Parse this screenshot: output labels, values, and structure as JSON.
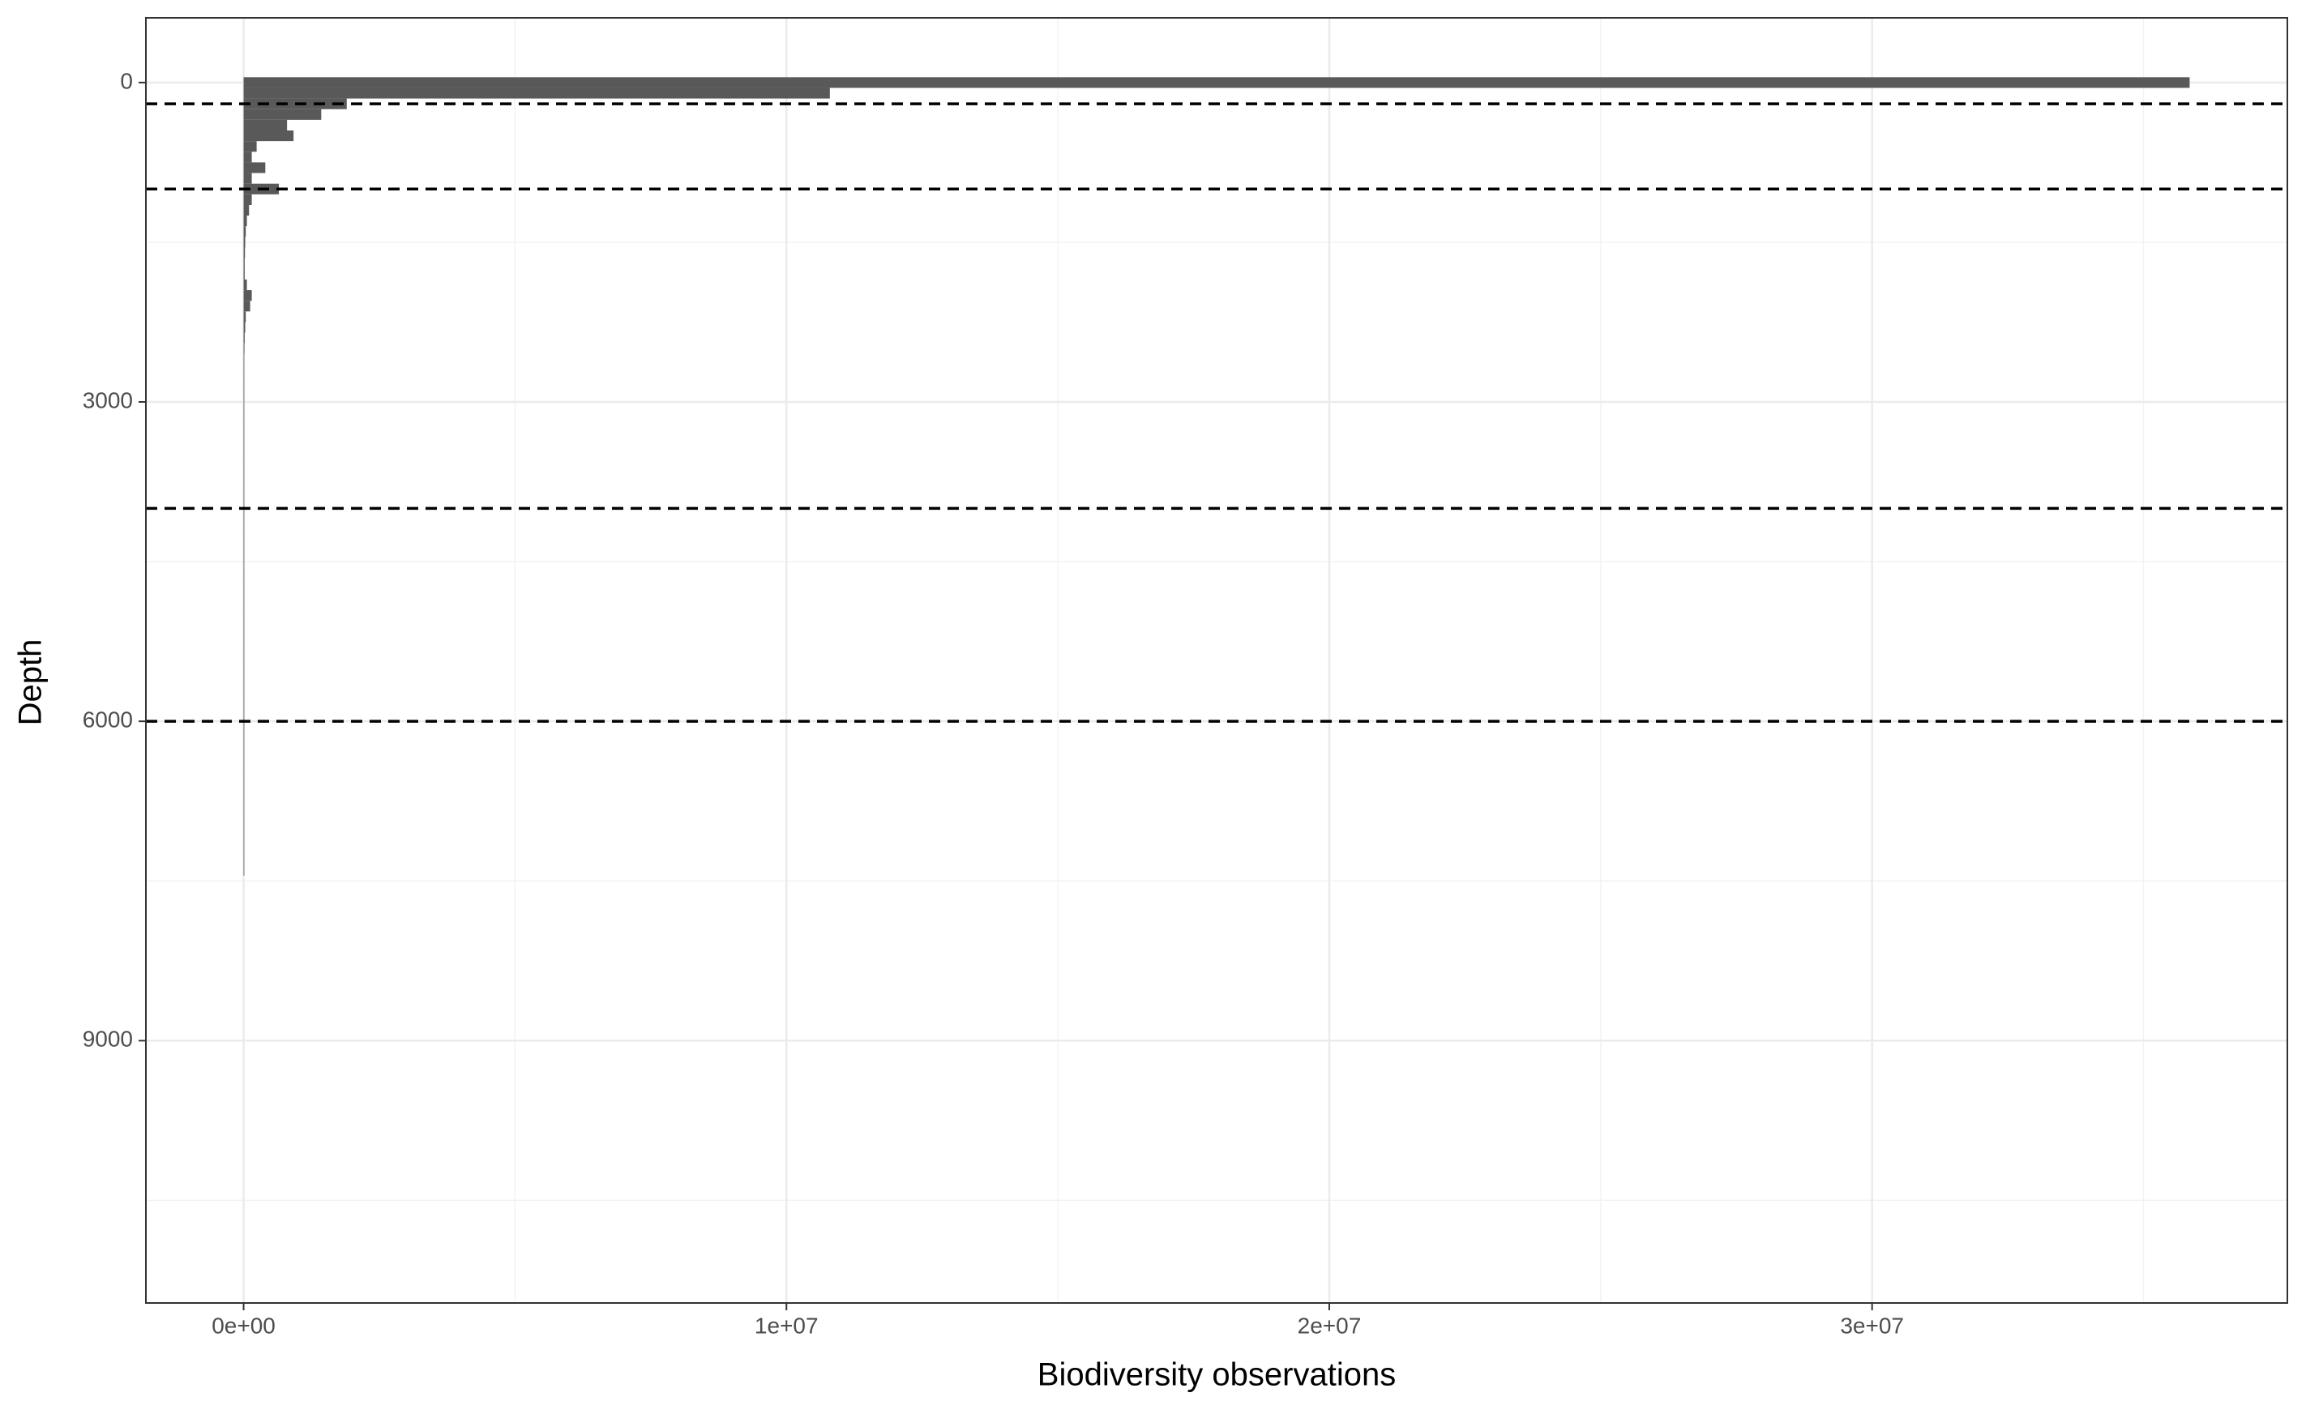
{
  "chart_data": {
    "type": "histogram",
    "orientation": "horizontal",
    "x_label": "Biodiversity observations",
    "y_label": "Depth",
    "bins": [
      -50,
      50,
      150,
      250,
      350,
      450,
      550,
      650,
      750,
      850,
      950,
      1050,
      1150,
      1250,
      1350,
      1450,
      1550,
      1650,
      1750,
      1850,
      1950,
      2050,
      2150,
      2250,
      2350,
      2450,
      2550,
      2650,
      2750,
      2850,
      2950,
      3050,
      3150,
      3250,
      3350,
      3450,
      3550,
      3650,
      3750,
      3850,
      3950,
      4050,
      4150,
      4250,
      4350,
      4450,
      4550,
      4650,
      4750,
      4850,
      4950,
      5050,
      5150,
      5250,
      5350,
      5450,
      5550,
      5650,
      5750,
      5850,
      5950,
      6050,
      6150,
      6250,
      6350,
      6450,
      6550,
      6650,
      6750,
      6850,
      6950,
      7050,
      7150,
      7250,
      7350,
      7450
    ],
    "counts": [
      35850000,
      10800000,
      1900000,
      1430000,
      800000,
      920000,
      240000,
      150000,
      400000,
      150000,
      650000,
      150000,
      100000,
      60000,
      40000,
      30000,
      25000,
      20000,
      20000,
      60000,
      150000,
      120000,
      40000,
      30000,
      20000,
      15000,
      10000,
      10000,
      8000,
      8000,
      10000,
      6000,
      5000,
      5000,
      4000,
      4000,
      5000,
      4000,
      3000,
      3000,
      8000,
      4000,
      3000,
      3000,
      3000,
      3000,
      3000,
      3000,
      3000,
      3000,
      3000,
      2000,
      2000,
      2000,
      2000,
      2000,
      2000,
      2000,
      2000,
      2000,
      1500,
      1500,
      1000,
      3000,
      1000,
      1000,
      1000,
      1000,
      1000,
      1000,
      1000,
      1000,
      1000,
      2000,
      1000
    ],
    "color": "#595959",
    "hlines": [
      200,
      1000,
      4000,
      6000
    ],
    "xlim": [
      -1800000,
      37650000
    ],
    "xticks": [
      {
        "value": 0,
        "label": "0e+00"
      },
      {
        "value": 10000000,
        "label": "1e+07"
      },
      {
        "value": 20000000,
        "label": "2e+07"
      },
      {
        "value": 30000000,
        "label": "3e+07"
      }
    ],
    "xminor": [
      5000000,
      15000000,
      25000000,
      35000000
    ],
    "ylim": [
      -608,
      11464
    ],
    "y_reversed": true,
    "yticks": [
      0,
      3000,
      6000,
      9000
    ],
    "yminor": [
      1500,
      4500,
      7500,
      10500
    ],
    "grid": true
  }
}
